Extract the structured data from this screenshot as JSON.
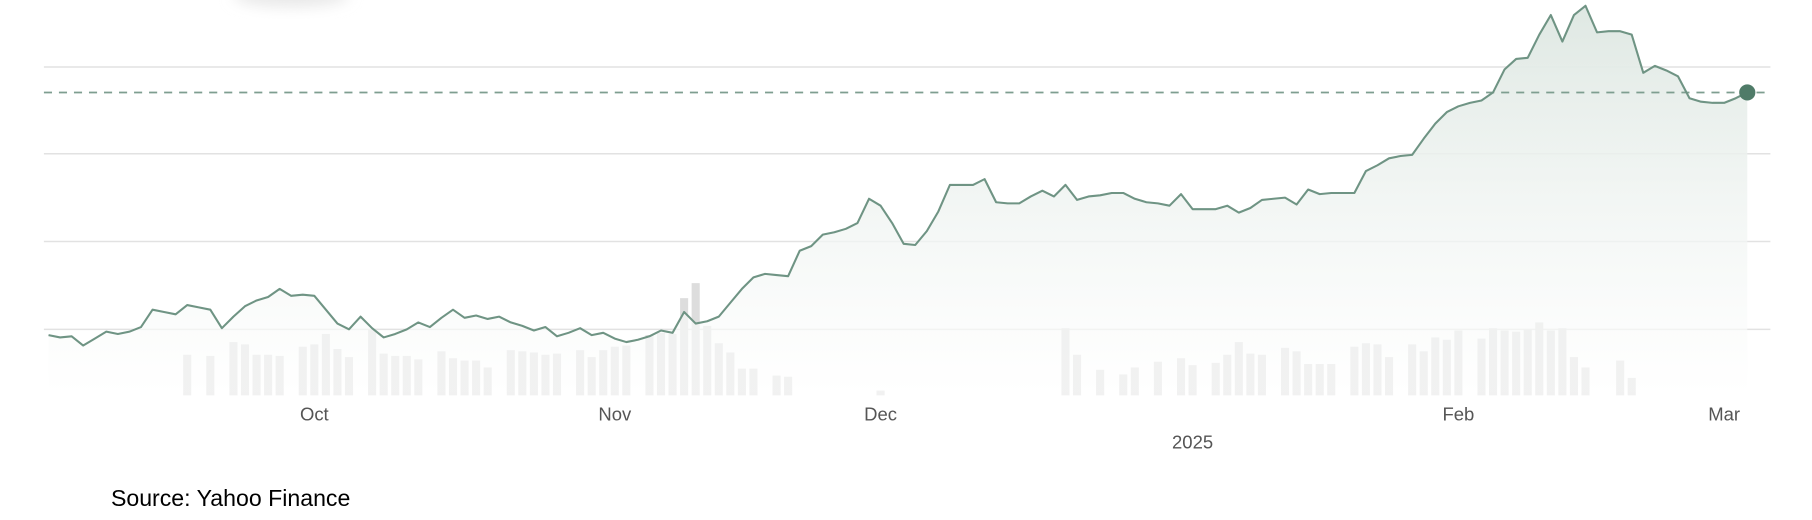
{
  "chart_data": {
    "type": "line",
    "categories": [
      null,
      null,
      null,
      null,
      null,
      null,
      null,
      null,
      null,
      null,
      null,
      null,
      null,
      null,
      null,
      null,
      null,
      null,
      null,
      null,
      null,
      null,
      null,
      "Oct",
      null,
      null,
      null,
      null,
      null,
      null,
      null,
      null,
      null,
      null,
      null,
      null,
      null,
      null,
      null,
      null,
      null,
      null,
      null,
      null,
      null,
      null,
      null,
      null,
      null,
      "Nov",
      null,
      null,
      null,
      null,
      null,
      null,
      null,
      null,
      null,
      null,
      null,
      null,
      null,
      null,
      null,
      null,
      null,
      null,
      null,
      null,
      null,
      null,
      "Dec",
      null,
      null,
      null,
      null,
      null,
      null,
      null,
      null,
      null,
      null,
      null,
      null,
      null,
      null,
      null,
      null,
      null,
      null,
      null,
      null,
      null,
      null,
      null,
      null,
      null,
      null,
      "2025",
      null,
      null,
      null,
      null,
      null,
      null,
      null,
      null,
      null,
      null,
      null,
      null,
      null,
      null,
      null,
      null,
      null,
      null,
      null,
      null,
      null,
      null,
      "Feb",
      null,
      null,
      null,
      null,
      null,
      null,
      null,
      null,
      null,
      null,
      null,
      null,
      null,
      null,
      null,
      null,
      null,
      null,
      null,
      null,
      null,
      null,
      "Mar",
      null,
      null
    ],
    "values": [
      52,
      50,
      51,
      43,
      49,
      55,
      53,
      55,
      59,
      74,
      72,
      70,
      78,
      76,
      74,
      58,
      68,
      77,
      82,
      85,
      92,
      86,
      87,
      86,
      74,
      62,
      57,
      68,
      58,
      50,
      53,
      57,
      63,
      59,
      67,
      74,
      67,
      69,
      66,
      68,
      63,
      60,
      56,
      59,
      51,
      54,
      58,
      52,
      54,
      49,
      46,
      48,
      51,
      56,
      54,
      72,
      62,
      64,
      68,
      80,
      92,
      102,
      105,
      104,
      103,
      125,
      129,
      139,
      141,
      144,
      149,
      170,
      164,
      149,
      131,
      130,
      142,
      159,
      182,
      182,
      182,
      187,
      167,
      166,
      166,
      172,
      177,
      172,
      182,
      169,
      172,
      173,
      175,
      175,
      170,
      167,
      166,
      164,
      174,
      161,
      161,
      161,
      164,
      158,
      162,
      169,
      170,
      171,
      165,
      178,
      174,
      175,
      175,
      175,
      194,
      199,
      205,
      207,
      208,
      222,
      235,
      245,
      250,
      253,
      255,
      262,
      282,
      291,
      292,
      312,
      329,
      306,
      329,
      337,
      314,
      315,
      315,
      312,
      279,
      285,
      281,
      276,
      257,
      254,
      253,
      253,
      257,
      262
    ],
    "volume": [
      null,
      null,
      null,
      null,
      null,
      null,
      null,
      null,
      null,
      null,
      null,
      null,
      35,
      null,
      34,
      null,
      46,
      44,
      35,
      35,
      34,
      null,
      42,
      44,
      53,
      40,
      33,
      null,
      57,
      36,
      34,
      34,
      31,
      null,
      38,
      32,
      30,
      30,
      24,
      null,
      39,
      38,
      37,
      35,
      36,
      null,
      39,
      33,
      39,
      42,
      43,
      null,
      52,
      54,
      53,
      84,
      97,
      60,
      45,
      37,
      23,
      23,
      null,
      17,
      16,
      null,
      null,
      null,
      null,
      null,
      null,
      null,
      4,
      null,
      null,
      null,
      null,
      null,
      null,
      null,
      null,
      null,
      null,
      null,
      null,
      null,
      null,
      null,
      58,
      35,
      null,
      22,
      null,
      18,
      24,
      null,
      29,
      null,
      32,
      26,
      null,
      28,
      35,
      46,
      36,
      35,
      null,
      41,
      38,
      27,
      27,
      27,
      null,
      42,
      45,
      44,
      33,
      null,
      44,
      38,
      50,
      48,
      56,
      null,
      49,
      58,
      56,
      55,
      57,
      63,
      56,
      58,
      33,
      24,
      null,
      null,
      30,
      15,
      null,
      null,
      null,
      null,
      null,
      null,
      null,
      null,
      null,
      null
    ],
    "color": "#6f9484",
    "volume_color": "#dddddd",
    "ylim": [
      0,
      342
    ],
    "gridlines": [
      57,
      133,
      209,
      284
    ],
    "reference": 262,
    "source": "Source: Yahoo Finance"
  }
}
